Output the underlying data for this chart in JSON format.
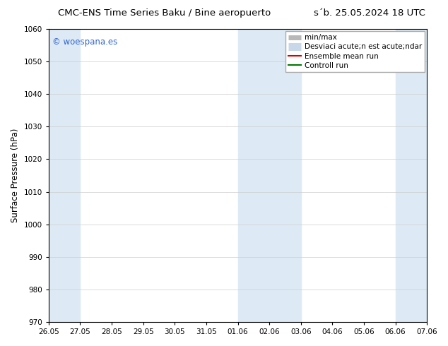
{
  "title_left": "CMC-ENS Time Series Baku / Bine aeropuerto",
  "title_right": "s´b. 25.05.2024 18 UTC",
  "ylabel": "Surface Pressure (hPa)",
  "ylim": [
    970,
    1060
  ],
  "yticks": [
    970,
    980,
    990,
    1000,
    1010,
    1020,
    1030,
    1040,
    1050,
    1060
  ],
  "xtick_labels": [
    "26.05",
    "27.05",
    "28.05",
    "29.05",
    "30.05",
    "31.05",
    "01.06",
    "02.06",
    "03.06",
    "04.06",
    "05.06",
    "06.06",
    "07.06"
  ],
  "xtick_positions": [
    0,
    1,
    2,
    3,
    4,
    5,
    6,
    7,
    8,
    9,
    10,
    11,
    12
  ],
  "shaded_bands": [
    {
      "x_start": 0,
      "x_end": 1,
      "color": "#ddeaf5"
    },
    {
      "x_start": 6,
      "x_end": 8,
      "color": "#ddeaf5"
    },
    {
      "x_start": 11,
      "x_end": 12,
      "color": "#ddeaf5"
    }
  ],
  "watermark_text": "© woespana.es",
  "watermark_color": "#3366cc",
  "legend_entries": [
    {
      "label": "min/max",
      "color": "#b8b8b8",
      "lw": 5
    },
    {
      "label": "Desviaci acute;n est acute;ndar",
      "color": "#c8d8e8",
      "lw": 8
    },
    {
      "label": "Ensemble mean run",
      "color": "#dd0000",
      "lw": 1.5
    },
    {
      "label": "Controll run",
      "color": "#007700",
      "lw": 1.5
    }
  ],
  "background_color": "#ffffff",
  "plot_bg_color": "#ffffff",
  "grid_color": "#cccccc",
  "title_fontsize": 9.5,
  "label_fontsize": 8.5,
  "tick_fontsize": 7.5,
  "legend_fontsize": 7.5
}
